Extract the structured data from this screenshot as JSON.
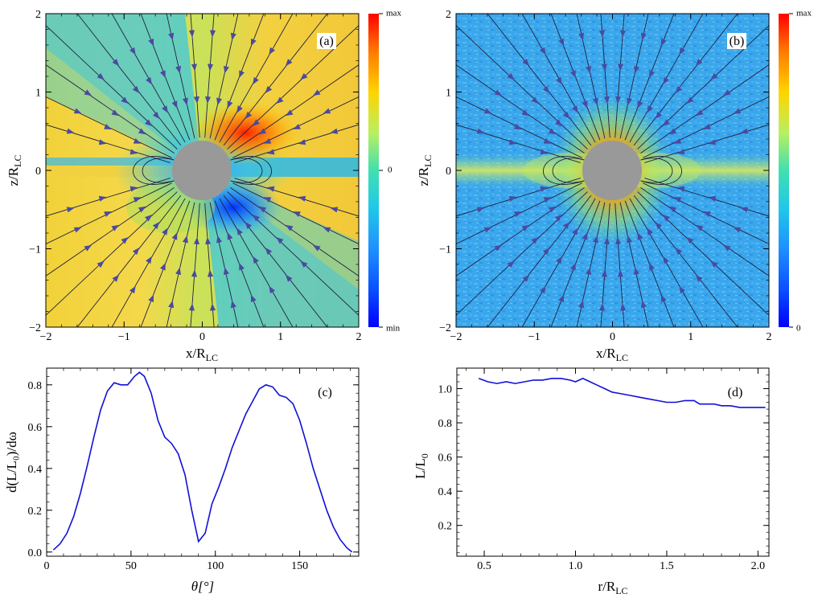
{
  "chart_data": [
    {
      "panel": "a",
      "type": "heatmap",
      "label": "(a)",
      "xlabel": "x/R",
      "xlabel_sub": "LC",
      "ylabel": "z/R",
      "ylabel_sub": "LC",
      "xlim": [
        -2,
        2
      ],
      "ylim": [
        -2,
        2
      ],
      "xticks": [
        -2,
        -1,
        0,
        1,
        2
      ],
      "yticks": [
        -2,
        -1,
        0,
        1,
        2
      ],
      "xtick_labels": [
        "−2",
        "−1",
        "0",
        "1",
        "2"
      ],
      "ytick_labels": [
        "−2",
        "−1",
        "0",
        "1",
        "2"
      ],
      "colorbar": {
        "top": "max",
        "middle": "0",
        "bottom": "min"
      },
      "star_radius": 0.38,
      "field_lines": "radial open field with closed loops near the equator"
    },
    {
      "panel": "b",
      "type": "heatmap",
      "label": "(b)",
      "xlabel": "x/R",
      "xlabel_sub": "LC",
      "ylabel": "z/R",
      "ylabel_sub": "LC",
      "xlim": [
        -2,
        2
      ],
      "ylim": [
        -2,
        2
      ],
      "xticks": [
        -2,
        -1,
        0,
        1,
        2
      ],
      "yticks": [
        -2,
        -1,
        0,
        1,
        2
      ],
      "xtick_labels": [
        "−2",
        "−1",
        "0",
        "1",
        "2"
      ],
      "ytick_labels": [
        "−2",
        "−1",
        "0",
        "1",
        "2"
      ],
      "colorbar": {
        "top": "max",
        "bottom": "0"
      },
      "star_radius": 0.38
    },
    {
      "panel": "c",
      "type": "line",
      "label": "(c)",
      "xlabel": "θ[°]",
      "ylabel": "d(L/L₀)/dω",
      "xlim": [
        0,
        185
      ],
      "ylim": [
        -0.02,
        0.88
      ],
      "xticks": [
        0,
        50,
        100,
        150
      ],
      "yticks": [
        0.0,
        0.2,
        0.4,
        0.6,
        0.8
      ],
      "xtick_labels": [
        "0",
        "50",
        "100",
        "150"
      ],
      "ytick_labels": [
        "0.0",
        "0.2",
        "0.4",
        "0.6",
        "0.8"
      ],
      "color": "#1010d8",
      "x": [
        4,
        8,
        12,
        16,
        20,
        24,
        28,
        32,
        36,
        40,
        44,
        48,
        52,
        55,
        58,
        62,
        66,
        70,
        74,
        78,
        82,
        86,
        90,
        94,
        98,
        102,
        106,
        110,
        114,
        118,
        122,
        126,
        130,
        134,
        138,
        142,
        146,
        150,
        154,
        158,
        162,
        166,
        170,
        174,
        178,
        181
      ],
      "y": [
        0.01,
        0.04,
        0.09,
        0.17,
        0.28,
        0.41,
        0.55,
        0.68,
        0.77,
        0.81,
        0.8,
        0.8,
        0.84,
        0.86,
        0.84,
        0.76,
        0.63,
        0.55,
        0.52,
        0.47,
        0.37,
        0.2,
        0.05,
        0.09,
        0.23,
        0.31,
        0.4,
        0.5,
        0.58,
        0.66,
        0.72,
        0.78,
        0.8,
        0.79,
        0.75,
        0.74,
        0.71,
        0.63,
        0.52,
        0.4,
        0.3,
        0.2,
        0.12,
        0.06,
        0.02,
        0.0
      ]
    },
    {
      "panel": "d",
      "type": "line",
      "label": "(d)",
      "xlabel": "r/R",
      "xlabel_sub": "LC",
      "ylabel": "L/L",
      "ylabel_sub": "0",
      "xlim": [
        0.35,
        2.06
      ],
      "ylim": [
        0.02,
        1.12
      ],
      "xticks": [
        0.5,
        1.0,
        1.5,
        2.0
      ],
      "yticks": [
        0.2,
        0.4,
        0.6,
        0.8,
        1.0
      ],
      "xtick_labels": [
        "0.5",
        "1.0",
        "1.5",
        "2.0"
      ],
      "ytick_labels": [
        "0.2",
        "0.4",
        "0.6",
        "0.8",
        "1.0"
      ],
      "color": "#1010d8",
      "x": [
        0.47,
        0.52,
        0.57,
        0.62,
        0.67,
        0.72,
        0.77,
        0.82,
        0.87,
        0.92,
        0.97,
        1.0,
        1.04,
        1.08,
        1.12,
        1.16,
        1.2,
        1.25,
        1.3,
        1.35,
        1.4,
        1.45,
        1.5,
        1.55,
        1.6,
        1.65,
        1.68,
        1.72,
        1.76,
        1.8,
        1.85,
        1.9,
        1.95,
        2.0,
        2.04
      ],
      "y": [
        1.06,
        1.04,
        1.03,
        1.04,
        1.03,
        1.04,
        1.05,
        1.05,
        1.06,
        1.06,
        1.05,
        1.04,
        1.06,
        1.04,
        1.02,
        1.0,
        0.98,
        0.97,
        0.96,
        0.95,
        0.94,
        0.93,
        0.92,
        0.92,
        0.93,
        0.93,
        0.91,
        0.91,
        0.91,
        0.9,
        0.9,
        0.89,
        0.89,
        0.89,
        0.89
      ]
    }
  ]
}
